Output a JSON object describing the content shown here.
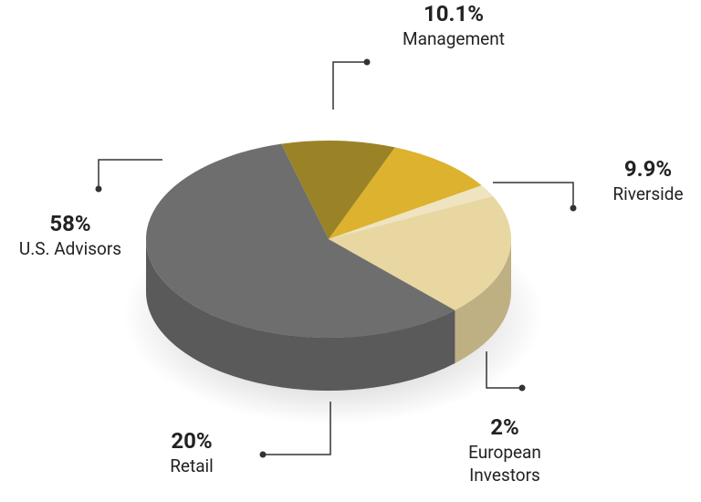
{
  "chart_data": {
    "type": "pie",
    "categories": [
      "Management",
      "Riverside",
      "European Investors",
      "Retail",
      "U.S. Advisors"
    ],
    "values": [
      10.1,
      9.9,
      2,
      20,
      58
    ],
    "value_labels": [
      "10.1%",
      "9.9%",
      "2%",
      "20%",
      "58%"
    ],
    "colors": [
      "#9a8326",
      "#dcb22e",
      "#efe3c0",
      "#e8d7a0",
      "#6e6e6e"
    ]
  }
}
